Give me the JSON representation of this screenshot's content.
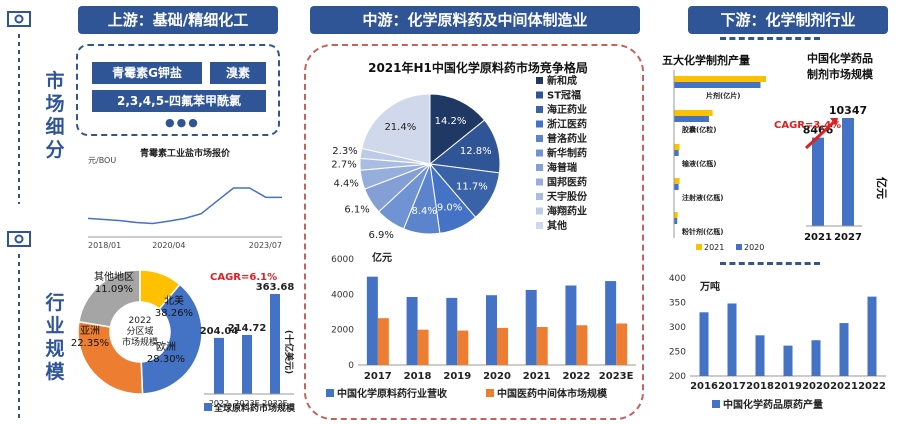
{
  "colors": {
    "navy": "#2f5597",
    "blue": "#4472c4",
    "orange": "#ed7d31",
    "yellow": "#ffc000",
    "red": "#e02020"
  },
  "headers": {
    "upstream": "上游：基础/精细化工",
    "midstream": "中游：化学原料药及中间体制造业",
    "downstream": "下游：化学制剂行业"
  },
  "side_labels": {
    "market": "市场细分",
    "industry": "行业规模"
  },
  "upstream_chips": [
    "青霉素G钾盐",
    "溴素",
    "2,3,4,5-四氟苯甲酰氯"
  ],
  "upstream_more": "●●●",
  "chart_data": [
    {
      "id": "penicillin_price",
      "type": "line",
      "title": "青霉素工业盐市场报价",
      "ylabel": "元/BOU",
      "x": [
        "2018/01",
        "2018/07",
        "2019/01",
        "2019/07",
        "2020/01",
        "2020/04",
        "2020/10",
        "2021/04",
        "2021/10",
        "2022/04",
        "2022/10",
        "2023/04",
        "2023/07"
      ],
      "y": [
        80,
        75,
        70,
        62,
        58,
        68,
        80,
        100,
        155,
        210,
        210,
        170,
        170
      ],
      "x_ticks": [
        "2018/01",
        "2020/04",
        "2023/07"
      ],
      "ylim": [
        0,
        300
      ]
    },
    {
      "id": "regional_share",
      "type": "pie",
      "title": "2022分区域市场规模",
      "labels": [
        "北美",
        "欧洲",
        "亚洲",
        "其他地区"
      ],
      "values": [
        38.26,
        28.3,
        22.35,
        11.09
      ],
      "value_labels": [
        "38.26%",
        "28.30%",
        "22.35%",
        "11.09%"
      ]
    },
    {
      "id": "global_api_market",
      "type": "bar",
      "title": "全球原料药市场规模",
      "ylabel": "(十亿美元)",
      "categories": [
        "2022",
        "2023E",
        "2032E"
      ],
      "values": [
        204.04,
        214.72,
        363.68
      ],
      "annotation": "CAGR=6.1%"
    },
    {
      "id": "competition",
      "type": "pie",
      "title": "2021年H1中国化学原料药市场竞争格局",
      "labels": [
        "新和成",
        "ST冠福",
        "海正药业",
        "浙江医药",
        "普洛药业",
        "新华制药",
        "海普瑞",
        "国邦医药",
        "天宇股份",
        "海翔药业",
        "其他"
      ],
      "values": [
        14.2,
        12.8,
        11.7,
        9.0,
        8.4,
        6.9,
        6.1,
        4.4,
        2.7,
        2.3,
        21.4
      ],
      "value_labels": [
        "14.2%",
        "12.8%",
        "11.7%",
        "9.0%",
        "8.4%",
        "6.9%",
        "6.1%",
        "4.4%",
        "2.7%",
        "2.3%",
        "21.4%"
      ]
    },
    {
      "id": "china_api_revenue",
      "type": "bar",
      "ylabel": "亿元",
      "categories": [
        "2017",
        "2018",
        "2019",
        "2020",
        "2021",
        "2022",
        "2023E"
      ],
      "series": [
        {
          "name": "中国化学原料药行业营收",
          "values": [
            5000,
            3850,
            3800,
            3950,
            4250,
            4500,
            4750
          ]
        },
        {
          "name": "中国医药中间体市场规模",
          "values": [
            2650,
            2000,
            1950,
            2100,
            2150,
            2250,
            2350
          ]
        }
      ],
      "ylim": [
        0,
        6000
      ],
      "y_ticks": [
        "0",
        "2000",
        "4000",
        "6000"
      ]
    },
    {
      "id": "five_dosage_output",
      "type": "bar",
      "title": "五大化学制剂产量",
      "categories": [
        "片剂(亿片)",
        "胶囊(亿粒)",
        "输液(亿瓶)",
        "注射液(亿瓶)",
        "粉针剂(亿瓶)"
      ],
      "series": [
        {
          "name": "2021",
          "values": [
            100,
            42,
            6,
            6,
            4
          ]
        },
        {
          "name": "2020",
          "values": [
            94,
            38,
            5,
            5,
            3.5
          ]
        }
      ]
    },
    {
      "id": "dosage_market",
      "type": "bar",
      "title": "中国化学药品制剂市场规模",
      "ylabel": "亿元",
      "categories": [
        "2021",
        "2027"
      ],
      "values": [
        8466,
        10347
      ],
      "annotation": "CAGR=3.4%"
    },
    {
      "id": "api_output",
      "type": "bar",
      "title": "中国化学药品原药产量",
      "ylabel": "万吨",
      "categories": [
        "2016",
        "2017",
        "2018",
        "2019",
        "2020",
        "2021",
        "2022"
      ],
      "values": [
        330,
        348,
        283,
        262,
        273,
        308,
        362
      ],
      "ylim": [
        200,
        400
      ],
      "y_ticks": [
        "200",
        "250",
        "300",
        "350",
        "400"
      ]
    }
  ]
}
